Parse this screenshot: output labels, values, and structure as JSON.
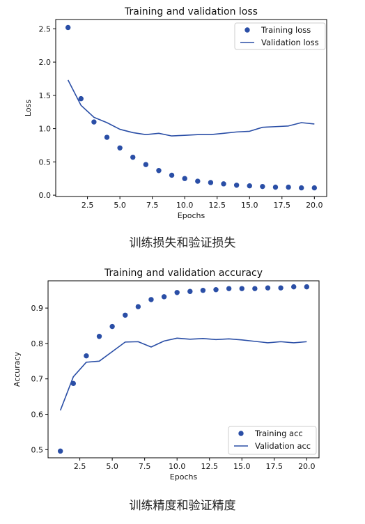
{
  "colors": {
    "series": "#2a4ea6",
    "axis": "#000000",
    "text": "#111111"
  },
  "captions": [
    "训练损失和验证损失",
    "训练精度和验证精度"
  ],
  "chart_data": [
    {
      "type": "scatter",
      "title": "Training and validation loss",
      "xlabel": "Epochs",
      "ylabel": "Loss",
      "xlim": [
        0.05,
        20.95
      ],
      "ylim": [
        -0.02,
        2.64
      ],
      "xticks": [
        2.5,
        5.0,
        7.5,
        10.0,
        12.5,
        15.0,
        17.5,
        20.0
      ],
      "xtick_labels": [
        "2.5",
        "5.0",
        "7.5",
        "10.0",
        "12.5",
        "15.0",
        "17.5",
        "20.0"
      ],
      "yticks": [
        0.0,
        0.5,
        1.0,
        1.5,
        2.0,
        2.5
      ],
      "ytick_labels": [
        "0.0",
        "0.5",
        "1.0",
        "1.5",
        "2.0",
        "2.5"
      ],
      "legend_position": "top-right",
      "grid": false,
      "x": [
        1,
        2,
        3,
        4,
        5,
        6,
        7,
        8,
        9,
        10,
        11,
        12,
        13,
        14,
        15,
        16,
        17,
        18,
        19,
        20
      ],
      "series": [
        {
          "name": "Training loss",
          "style": "points",
          "values": [
            2.52,
            1.45,
            1.1,
            0.87,
            0.71,
            0.57,
            0.46,
            0.37,
            0.3,
            0.25,
            0.21,
            0.19,
            0.17,
            0.15,
            0.14,
            0.13,
            0.12,
            0.12,
            0.11,
            0.11
          ]
        },
        {
          "name": "Validation loss",
          "style": "line",
          "values": [
            1.73,
            1.35,
            1.17,
            1.09,
            0.99,
            0.94,
            0.91,
            0.93,
            0.89,
            0.9,
            0.91,
            0.91,
            0.93,
            0.95,
            0.96,
            1.02,
            1.03,
            1.04,
            1.09,
            1.07
          ]
        }
      ]
    },
    {
      "type": "scatter",
      "title": "Training and validation accuracy",
      "xlabel": "Epochs",
      "ylabel": "Accuracy",
      "xlim": [
        0.05,
        20.95
      ],
      "ylim": [
        0.477,
        0.977
      ],
      "xticks": [
        2.5,
        5.0,
        7.5,
        10.0,
        12.5,
        15.0,
        17.5,
        20.0
      ],
      "xtick_labels": [
        "2.5",
        "5.0",
        "7.5",
        "10.0",
        "12.5",
        "15.0",
        "17.5",
        "20.0"
      ],
      "yticks": [
        0.5,
        0.6,
        0.7,
        0.8,
        0.9
      ],
      "ytick_labels": [
        "0.5",
        "0.6",
        "0.7",
        "0.8",
        "0.9"
      ],
      "legend_position": "bottom-right",
      "grid": false,
      "x": [
        1,
        2,
        3,
        4,
        5,
        6,
        7,
        8,
        9,
        10,
        11,
        12,
        13,
        14,
        15,
        16,
        17,
        18,
        19,
        20
      ],
      "series": [
        {
          "name": "Training acc",
          "style": "points",
          "values": [
            0.496,
            0.687,
            0.765,
            0.82,
            0.848,
            0.88,
            0.904,
            0.924,
            0.932,
            0.944,
            0.947,
            0.95,
            0.952,
            0.955,
            0.955,
            0.955,
            0.957,
            0.957,
            0.96,
            0.96
          ]
        },
        {
          "name": "Validation acc",
          "style": "line",
          "values": [
            0.611,
            0.706,
            0.747,
            0.75,
            0.777,
            0.804,
            0.805,
            0.79,
            0.807,
            0.815,
            0.812,
            0.814,
            0.811,
            0.813,
            0.81,
            0.806,
            0.802,
            0.805,
            0.802,
            0.805
          ]
        }
      ]
    }
  ]
}
